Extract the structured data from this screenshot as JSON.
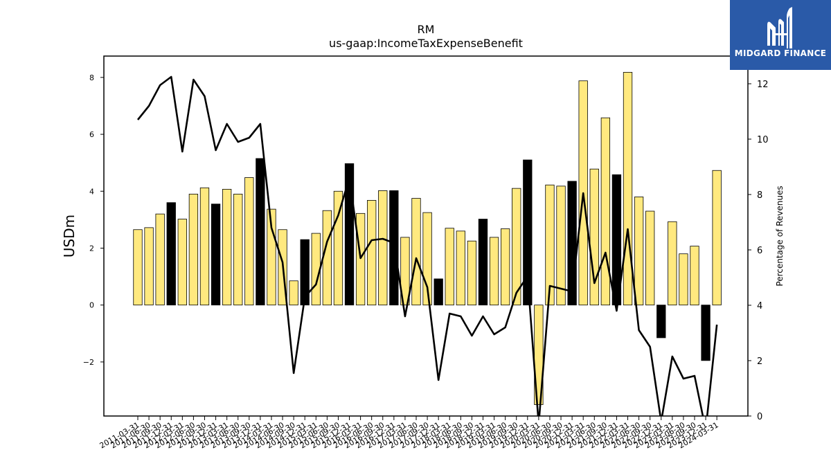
{
  "chart_data": {
    "type": "bar",
    "title": "RM",
    "subtitle": "us-gaap:IncomeTaxExpenseBenefit",
    "ylabel": "USDm",
    "y2label": "Percentage of Revenues",
    "ylim": [
      -3.9,
      8.75
    ],
    "y2lim": [
      0,
      13.0
    ],
    "yticks": [
      -2,
      0,
      2,
      4,
      6,
      8
    ],
    "y2ticks": [
      0,
      2,
      4,
      6,
      8,
      10,
      12
    ],
    "categories": [
      "2011-03-31",
      "2011-06-30",
      "2011-09-30",
      "2011-12-31",
      "2012-03-31",
      "2012-06-30",
      "2012-09-30",
      "2012-12-31",
      "2013-03-31",
      "2013-06-30",
      "2013-09-30",
      "2013-12-31",
      "2014-03-31",
      "2014-06-30",
      "2014-09-30",
      "2014-12-31",
      "2015-03-31",
      "2015-06-30",
      "2015-09-30",
      "2015-12-31",
      "2016-03-31",
      "2016-06-30",
      "2016-09-30",
      "2016-12-31",
      "2017-03-31",
      "2017-06-30",
      "2017-09-30",
      "2017-12-31",
      "2018-03-31",
      "2018-06-30",
      "2018-09-30",
      "2018-12-31",
      "2019-03-31",
      "2019-06-30",
      "2019-09-30",
      "2019-12-31",
      "2020-03-31",
      "2020-06-30",
      "2020-09-30",
      "2020-12-31",
      "2021-03-31",
      "2021-06-30",
      "2021-09-30",
      "2021-12-31",
      "2022-03-31",
      "2022-06-30",
      "2022-09-30",
      "2022-12-31",
      "2023-03-31",
      "2023-06-30",
      "2023-09-30",
      "2023-12-31",
      "2024-03-31"
    ],
    "series": [
      {
        "kind": "bar",
        "axis": "left",
        "values": [
          2.65,
          2.72,
          3.2,
          3.6,
          3.02,
          3.9,
          4.12,
          3.55,
          4.07,
          3.9,
          4.48,
          5.15,
          3.37,
          2.65,
          0.85,
          2.3,
          2.52,
          3.32,
          4.0,
          4.97,
          3.22,
          3.68,
          4.02,
          4.02,
          2.38,
          3.75,
          3.25,
          0.92,
          2.7,
          2.6,
          2.25,
          3.02,
          2.38,
          2.68,
          4.1,
          5.1,
          -3.5,
          4.22,
          4.18,
          4.35,
          7.88,
          4.78,
          6.58,
          4.58,
          8.18,
          3.8,
          3.3,
          -1.15,
          2.93,
          1.8,
          2.07,
          -1.95,
          4.73
        ],
        "highlight_q4": true
      },
      {
        "kind": "line",
        "axis": "right",
        "values": [
          10.7,
          11.2,
          11.95,
          12.25,
          9.55,
          12.15,
          11.55,
          9.6,
          10.55,
          9.9,
          10.05,
          10.55,
          6.8,
          5.55,
          1.55,
          4.3,
          4.75,
          6.3,
          7.25,
          8.6,
          5.7,
          6.35,
          6.4,
          6.25,
          3.6,
          5.7,
          4.65,
          1.3,
          3.7,
          3.6,
          2.9,
          3.6,
          2.95,
          3.2,
          4.45,
          5.05,
          -0.3,
          4.7,
          4.6,
          4.5,
          8.05,
          4.8,
          5.9,
          3.8,
          6.75,
          3.1,
          2.5,
          -0.2,
          2.15,
          1.35,
          1.45,
          -0.5,
          3.3
        ]
      }
    ],
    "colors": {
      "bar": "#ffe97f",
      "bar_highlight": "#000000",
      "bar_edge": "#000000",
      "line": "#000000"
    },
    "grid": false,
    "legend": "none"
  },
  "logo": {
    "text": "MIDGARD FINANCE",
    "bg": "#2a5aa8"
  }
}
